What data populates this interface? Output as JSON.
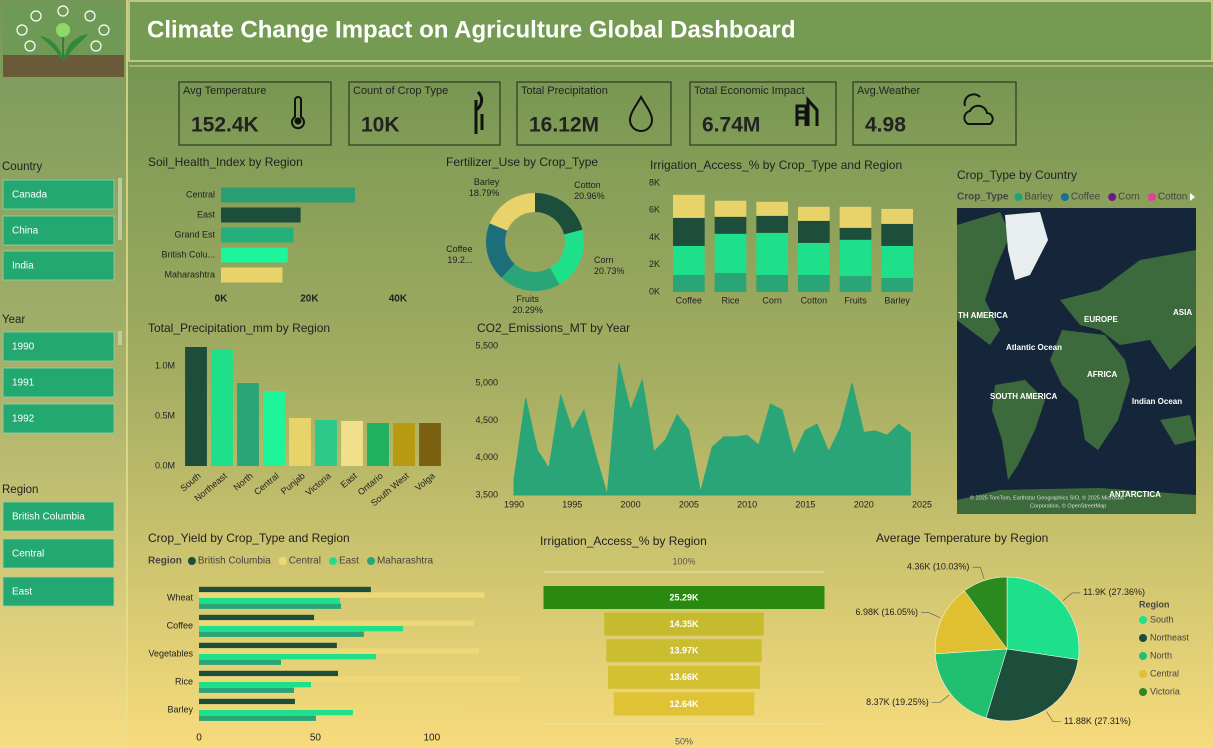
{
  "header": {
    "title": "Climate Change Impact on Agriculture Global Dashboard"
  },
  "kpis": [
    {
      "label": "Avg Temperature",
      "value": "152.4K"
    },
    {
      "label": "Count of Crop Type",
      "value": "10K"
    },
    {
      "label": "Total Precipitation",
      "value": "16.12M"
    },
    {
      "label": "Total Economic Impact",
      "value": "6.74M"
    },
    {
      "label": "Avg.Weather",
      "value": "4.98"
    }
  ],
  "slicers": [
    {
      "title": "Country",
      "items": [
        "Canada",
        "China",
        "India"
      ]
    },
    {
      "title": "Year",
      "items": [
        "1990",
        "1991",
        "1992"
      ]
    },
    {
      "title": "Region",
      "items": [
        "British Columbia",
        "Central",
        "East"
      ]
    }
  ],
  "chart_data": [
    {
      "type": "bar",
      "orientation": "horizontal",
      "title": "Soil_Health_Index by Region",
      "categories": [
        "Central",
        "East",
        "Grand Est",
        "British Colu...",
        "Maharashtra"
      ],
      "values": [
        30300,
        18000,
        16400,
        15100,
        13900
      ],
      "colors": [
        "#2a9e74",
        "#1d4d3b",
        "#23b07a",
        "#1cf59a",
        "#e8d36a"
      ],
      "xlim": [
        0,
        45000
      ],
      "xticks": [
        {
          "value": 0,
          "label": "0K"
        },
        {
          "value": 20000,
          "label": "20K"
        },
        {
          "value": 40000,
          "label": "40K"
        }
      ]
    },
    {
      "type": "donut",
      "title": "Fertilizer_Use by Crop_Type",
      "categories": [
        "Cotton",
        "Corn",
        "Fruits",
        "Coffee",
        "Barley"
      ],
      "values": [
        20.96,
        20.73,
        20.29,
        19.23,
        18.79
      ],
      "value_labels": [
        "20.96%",
        "20.73%",
        "20.29%",
        "19.2...",
        "18.79%"
      ],
      "colors": [
        "#1d4d3b",
        "#1fe08a",
        "#2aa577",
        "#1b6e7a",
        "#e8d36a"
      ]
    },
    {
      "type": "bar",
      "orientation": "vertical",
      "stacked": true,
      "title": "Irrigation_Access_% by Crop_Type and Region",
      "categories": [
        "Coffee",
        "Rice",
        "Corn",
        "Cotton",
        "Fruits",
        "Barley"
      ],
      "series": [
        {
          "color": "#2aa577",
          "values": [
            1250,
            1400,
            1250,
            1250,
            1180,
            1030
          ]
        },
        {
          "color": "#1fe08a",
          "values": [
            2130,
            2870,
            3090,
            2350,
            2650,
            2350
          ]
        },
        {
          "color": "#1d4d3b",
          "values": [
            2060,
            1250,
            1250,
            1620,
            880,
            1620
          ]
        },
        {
          "color": "#e8d36a",
          "values": [
            1690,
            1180,
            1030,
            1030,
            1540,
            1100
          ]
        }
      ],
      "ylim": [
        0,
        8000
      ],
      "yticks": [
        {
          "value": 0,
          "label": "0K"
        },
        {
          "value": 2000,
          "label": "2K"
        },
        {
          "value": 4000,
          "label": "4K"
        },
        {
          "value": 6000,
          "label": "6K"
        },
        {
          "value": 8000,
          "label": "8K"
        }
      ]
    },
    {
      "type": "bar",
      "orientation": "vertical",
      "title": "Total_Precipitation_mm by Region",
      "categories": [
        "South",
        "Northeast",
        "North",
        "Central",
        "Punjab",
        "Victoria",
        "East",
        "Ontario",
        "South West",
        "Volga"
      ],
      "values": [
        1190000,
        1170000,
        830000,
        750000,
        480000,
        460000,
        450000,
        430000,
        430000,
        430000
      ],
      "colors": [
        "#1d4d3b",
        "#1fe08a",
        "#2aa577",
        "#1cf59a",
        "#e8d36a",
        "#2cc98a",
        "#f0e08a",
        "#20b060",
        "#b89a10",
        "#7a6010"
      ],
      "ylim": [
        0,
        1250000
      ],
      "yticks": [
        {
          "value": 0,
          "label": "0.0M"
        },
        {
          "value": 500000,
          "label": "0.5M"
        },
        {
          "value": 1000000,
          "label": "1.0M"
        }
      ]
    },
    {
      "type": "area",
      "title": "CO2_Emissions_MT by Year",
      "color": "#2aa577",
      "x": [
        1990,
        1991,
        1992,
        1993,
        1994,
        1995,
        1996,
        1997,
        1998,
        1999,
        2000,
        2001,
        2002,
        2003,
        2004,
        2005,
        2006,
        2007,
        2008,
        2009,
        2010,
        2011,
        2012,
        2013,
        2014,
        2015,
        2016,
        2017,
        2018,
        2019,
        2020,
        2021,
        2022,
        2023,
        2024
      ],
      "values": [
        3700,
        4800,
        4100,
        3860,
        4840,
        4370,
        4640,
        4040,
        3500,
        5270,
        4640,
        5040,
        4080,
        4240,
        4580,
        4370,
        3540,
        4140,
        4280,
        4280,
        4300,
        4170,
        4720,
        4640,
        4040,
        4370,
        4450,
        4080,
        4400,
        5000,
        4340,
        4360,
        4300,
        4450,
        4330
      ],
      "xlim": [
        1990,
        2025
      ],
      "xticks": [
        1990,
        1995,
        2000,
        2005,
        2010,
        2015,
        2020,
        2025
      ],
      "ylim": [
        3500,
        5500
      ],
      "yticks": [
        {
          "value": 3500,
          "label": "3,500"
        },
        {
          "value": 4000,
          "label": "4,000"
        },
        {
          "value": 4500,
          "label": "4,500"
        },
        {
          "value": 5000,
          "label": "5,000"
        },
        {
          "value": 5500,
          "label": "5,500"
        }
      ]
    },
    {
      "type": "map",
      "title": "Crop_Type by Country",
      "legend_title": "Crop_Type",
      "series": [
        {
          "name": "Barley",
          "color": "#1fa37a"
        },
        {
          "name": "Coffee",
          "color": "#1b6e9a"
        },
        {
          "name": "Corn",
          "color": "#6a1b8a"
        },
        {
          "name": "Cotton",
          "color": "#e040a0"
        }
      ],
      "map_labels": [
        "TH AMERICA",
        "EUROPE",
        "ASIA",
        "Atlantic Ocean",
        "AFRICA",
        "SOUTH AMERICA",
        "Indian Ocean",
        "ANTARCTICA"
      ],
      "attribution": [
        "© 2025 TomTom, Earthstar Geographics SIO, © 2025 Microsoft",
        "Corporation, © OpenStreetMap"
      ]
    },
    {
      "type": "bar",
      "orientation": "horizontal",
      "title": "Crop_Yield by Crop_Type and Region",
      "legend_title": "Region",
      "categories": [
        "Wheat",
        "Coffee",
        "Vegetables",
        "Rice",
        "Barley"
      ],
      "series": [
        {
          "name": "British Columbia",
          "color": "#1d4d3b",
          "values": [
            73.8,
            49.4,
            59.2,
            59.7,
            41.2
          ]
        },
        {
          "name": "Central",
          "color": "#efd977",
          "values": [
            122.7,
            118,
            120.2,
            137.8,
            112
          ]
        },
        {
          "name": "East",
          "color": "#1fe08a",
          "values": [
            60.5,
            87.6,
            76,
            48.1,
            66.1
          ]
        },
        {
          "name": "Maharashtra",
          "color": "#2aa577",
          "values": [
            61,
            70.8,
            35.2,
            40.8,
            50.2
          ]
        }
      ],
      "xlim": [
        0,
        140
      ],
      "xticks": [
        0,
        50,
        100
      ]
    },
    {
      "type": "funnel",
      "title": "Irrigation_Access_% by Region",
      "values": [
        25290,
        14350,
        13970,
        13660,
        12640
      ],
      "value_labels": [
        "25.29K",
        "14.35K",
        "13.97K",
        "13.66K",
        "12.64K"
      ],
      "colors": [
        "#2a8a10",
        "#c6bb2e",
        "#cbbd30",
        "#d4c132",
        "#dfc334"
      ],
      "top_label": "100%",
      "bottom_label": "50%"
    },
    {
      "type": "pie",
      "title": "Average Temperature by Region",
      "legend_title": "Region",
      "categories": [
        "South",
        "Northeast",
        "North",
        "Central",
        "Victoria"
      ],
      "values": [
        11900,
        11880,
        8370,
        6980,
        4360
      ],
      "value_labels": [
        "11.9K (27.36%)",
        "11.88K (27.31%)",
        "8.37K (19.25%)",
        "6.98K (16.05%)",
        "4.36K (10.03%)"
      ],
      "colors": [
        "#1fe08a",
        "#1d4d3b",
        "#20c070",
        "#e0c030",
        "#2a8a20"
      ]
    }
  ]
}
